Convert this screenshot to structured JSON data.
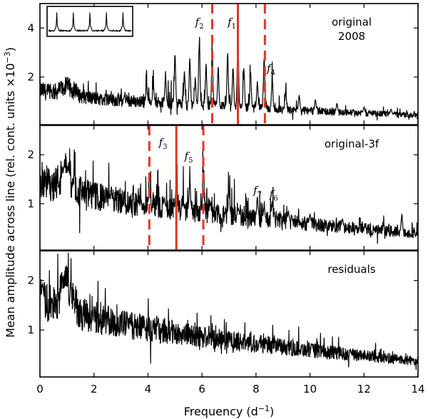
{
  "chart_data": {
    "type": "line",
    "xlabel_main": "Frequency (d",
    "xlabel_sup": "−1",
    "xlabel_close": ")",
    "ylabel_main": "Mean amplitude across line (rel. cont. units ×10",
    "ylabel_sup": "−3",
    "ylabel_close": ")",
    "xlim": [
      0,
      14
    ],
    "x_ticks": [
      0,
      2,
      4,
      6,
      8,
      10,
      12,
      14
    ],
    "x_tick_labels": [
      "0",
      "2",
      "4",
      "6",
      "8",
      "10",
      "12",
      "14"
    ],
    "colors": {
      "signal": "#000000",
      "marker": "#e8332a"
    },
    "panels": [
      {
        "label_lines": [
          "original",
          "2008"
        ],
        "ylim": [
          0.05,
          5.0
        ],
        "y_ticks": [
          2,
          4
        ],
        "y_tick_labels": [
          "2",
          "4"
        ],
        "baseline": {
          "start": 1.55,
          "end": 0.45,
          "hump_center": 1.0,
          "hump_height": 0.35
        },
        "peaks": [
          {
            "x": 3.95,
            "y": 1.6
          },
          {
            "x": 4.2,
            "y": 1.7
          },
          {
            "x": 4.65,
            "y": 2.1
          },
          {
            "x": 5.0,
            "y": 3.1
          },
          {
            "x": 5.35,
            "y": 2.3
          },
          {
            "x": 5.55,
            "y": 2.9
          },
          {
            "x": 5.75,
            "y": 2.0
          },
          {
            "x": 5.9,
            "y": 3.7
          },
          {
            "x": 6.15,
            "y": 2.6
          },
          {
            "x": 6.38,
            "y": 3.15
          },
          {
            "x": 6.6,
            "y": 2.5
          },
          {
            "x": 6.95,
            "y": 3.2
          },
          {
            "x": 7.15,
            "y": 2.5
          },
          {
            "x": 7.33,
            "y": 4.3
          },
          {
            "x": 7.55,
            "y": 2.5
          },
          {
            "x": 7.8,
            "y": 2.4
          },
          {
            "x": 8.05,
            "y": 1.9
          },
          {
            "x": 8.3,
            "y": 2.9
          },
          {
            "x": 8.6,
            "y": 2.0
          },
          {
            "x": 9.1,
            "y": 1.5
          },
          {
            "x": 9.6,
            "y": 1.3
          },
          {
            "x": 10.2,
            "y": 1.1
          },
          {
            "x": 11.0,
            "y": 0.95
          },
          {
            "x": 12.0,
            "y": 0.8
          },
          {
            "x": 13.0,
            "y": 0.7
          }
        ],
        "markers": [
          {
            "x": 6.38,
            "style": "dashed"
          },
          {
            "x": 7.33,
            "style": "solid"
          },
          {
            "x": 8.33,
            "style": "dashed"
          }
        ],
        "freq_labels": [
          {
            "name": "f",
            "sub": "2",
            "x": 5.75,
            "y": 4.1
          },
          {
            "name": "f",
            "sub": "1",
            "x": 6.95,
            "y": 4.1
          },
          {
            "name": "f",
            "sub": "4",
            "x": 8.4,
            "y": 2.2
          }
        ],
        "inset": true
      },
      {
        "label_lines": [
          "original-3f"
        ],
        "ylim": [
          0.05,
          2.6
        ],
        "y_ticks": [
          1,
          2
        ],
        "y_tick_labels": [
          "1",
          "2"
        ],
        "baseline": {
          "start": 1.6,
          "end": 0.4,
          "hump_center": 1.0,
          "hump_height": 0.3
        },
        "peaks": [
          {
            "x": 0.9,
            "y": 1.8
          },
          {
            "x": 1.05,
            "y": 1.7
          },
          {
            "x": 2.6,
            "y": 1.1
          },
          {
            "x": 3.7,
            "y": 0.95
          },
          {
            "x": 4.05,
            "y": 1.3
          },
          {
            "x": 4.6,
            "y": 1.1
          },
          {
            "x": 5.05,
            "y": 1.5
          },
          {
            "x": 5.3,
            "y": 1.0
          },
          {
            "x": 5.55,
            "y": 1.5
          },
          {
            "x": 6.05,
            "y": 1.75
          },
          {
            "x": 6.3,
            "y": 1.0
          },
          {
            "x": 7.0,
            "y": 1.25
          },
          {
            "x": 7.35,
            "y": 0.9
          },
          {
            "x": 8.05,
            "y": 1.15
          },
          {
            "x": 8.3,
            "y": 0.95
          },
          {
            "x": 8.6,
            "y": 1.05
          },
          {
            "x": 9.2,
            "y": 0.85
          },
          {
            "x": 10.0,
            "y": 0.8
          },
          {
            "x": 11.2,
            "y": 0.7
          },
          {
            "x": 13.4,
            "y": 0.8
          }
        ],
        "markers": [
          {
            "x": 4.05,
            "style": "dashed"
          },
          {
            "x": 5.05,
            "style": "solid"
          },
          {
            "x": 6.05,
            "style": "dashed"
          }
        ],
        "freq_labels": [
          {
            "name": "f",
            "sub": "3",
            "x": 4.4,
            "y": 2.18
          },
          {
            "name": "f",
            "sub": "5",
            "x": 5.35,
            "y": 1.9
          },
          {
            "name": "f",
            "sub": "7",
            "x": 7.9,
            "y": 1.2
          },
          {
            "name": "f",
            "sub": "6",
            "x": 8.5,
            "y": 1.12
          }
        ],
        "inset": false
      },
      {
        "label_lines": [
          "residuals"
        ],
        "ylim": [
          0.05,
          2.6
        ],
        "y_ticks": [
          1,
          2
        ],
        "y_tick_labels": [
          "1",
          "2"
        ],
        "baseline": {
          "start": 1.75,
          "end": 0.38,
          "hump_center": 1.0,
          "hump_height": 0.45
        },
        "peaks": [
          {
            "x": 0.1,
            "y": 1.95
          },
          {
            "x": 0.95,
            "y": 1.9
          },
          {
            "x": 1.2,
            "y": 1.4
          },
          {
            "x": 2.0,
            "y": 0.95
          },
          {
            "x": 3.3,
            "y": 0.8
          }
        ],
        "markers": [],
        "freq_labels": [],
        "inset": false
      }
    ]
  }
}
